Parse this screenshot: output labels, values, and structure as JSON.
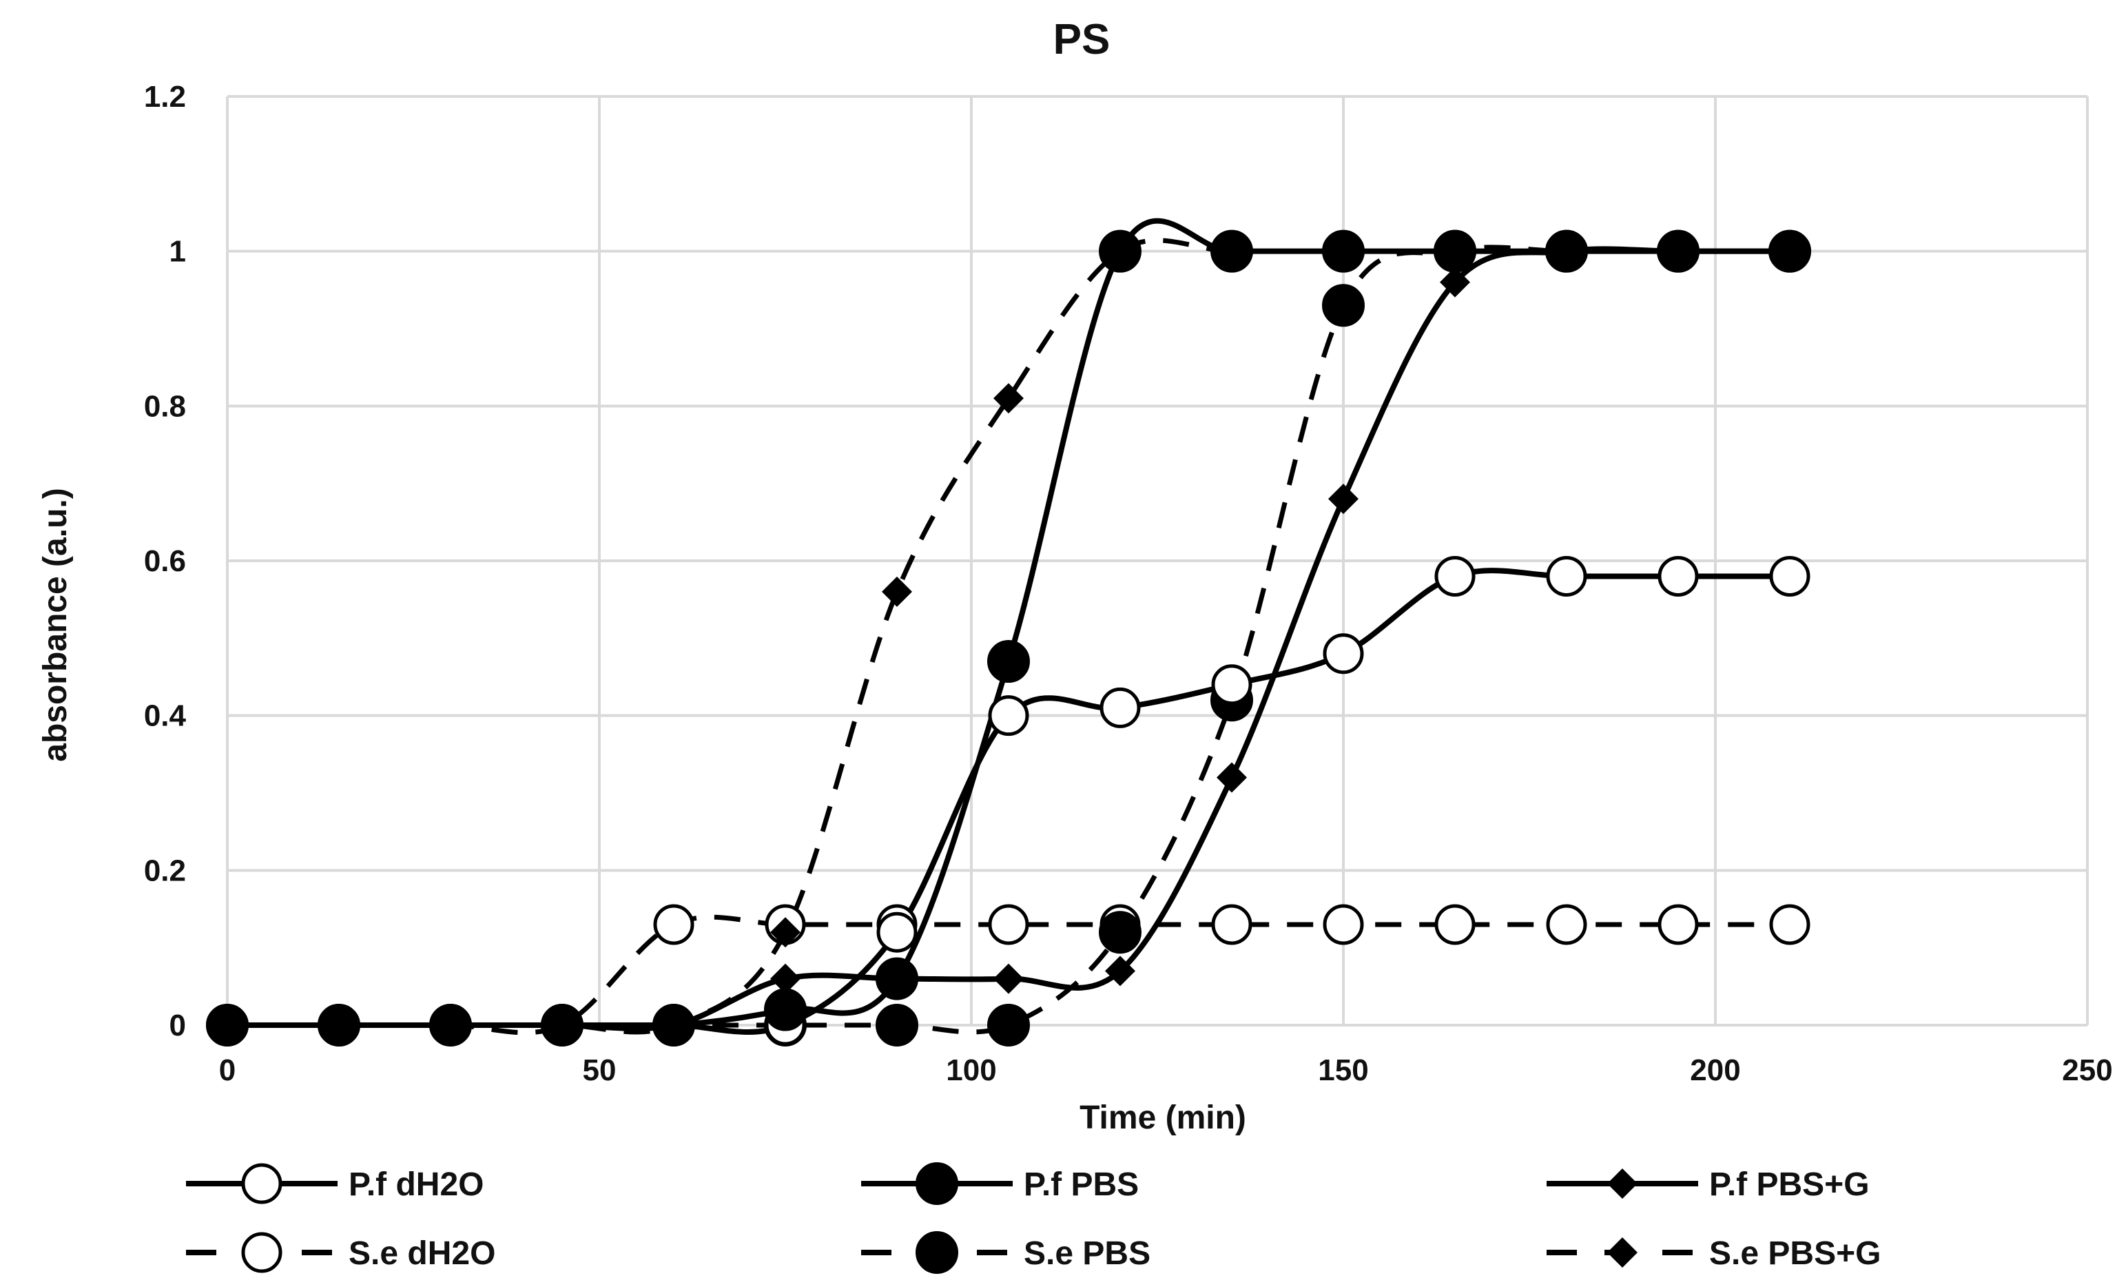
{
  "chart_data": {
    "type": "line",
    "title": "PS",
    "xlabel": "Time (min)",
    "ylabel": "absorbance (a.u.)",
    "xlim": [
      0,
      250
    ],
    "ylim": [
      0,
      1.2
    ],
    "x_ticks": [
      0,
      50,
      100,
      150,
      200,
      250
    ],
    "y_ticks": [
      0,
      0.2,
      0.4,
      0.6,
      0.8,
      1,
      1.2
    ],
    "x_tick_labels": [
      "0",
      "50",
      "100",
      "150",
      "200",
      "250"
    ],
    "y_tick_labels": [
      "0",
      "0.2",
      "0.4",
      "0.6",
      "0.8",
      "1",
      "1.2"
    ],
    "grid": true,
    "legend_position": "bottom",
    "series": [
      {
        "name": "P.f dH2O",
        "line": "solid",
        "marker": "circle-open",
        "x": [
          0,
          15,
          30,
          45,
          60,
          75,
          90,
          105,
          120,
          135,
          150,
          165,
          180,
          195,
          210
        ],
        "y": [
          0,
          0,
          0,
          0,
          0,
          0,
          0.12,
          0.4,
          0.41,
          0.44,
          0.48,
          0.58,
          0.58,
          0.58,
          0.58
        ]
      },
      {
        "name": "P.f PBS",
        "line": "solid",
        "marker": "circle-filled",
        "x": [
          0,
          15,
          30,
          45,
          60,
          75,
          90,
          105,
          120,
          135,
          150,
          165,
          180,
          195,
          210
        ],
        "y": [
          0,
          0,
          0,
          0,
          0,
          0.02,
          0.06,
          0.47,
          1,
          1,
          1,
          1,
          1,
          1,
          1
        ]
      },
      {
        "name": "P.f PBS+G",
        "line": "solid",
        "marker": "diamond-filled",
        "x": [
          0,
          15,
          30,
          45,
          60,
          75,
          90,
          105,
          120,
          135,
          150,
          165,
          180,
          195,
          210
        ],
        "y": [
          0,
          0,
          0,
          0,
          0,
          0.06,
          0.06,
          0.06,
          0.07,
          0.32,
          0.68,
          0.96,
          1,
          1,
          1
        ]
      },
      {
        "name": "S.e dH2O",
        "line": "dashed",
        "marker": "circle-open",
        "x": [
          0,
          15,
          30,
          45,
          60,
          75,
          90,
          105,
          120,
          135,
          150,
          165,
          180,
          195,
          210
        ],
        "y": [
          0,
          0,
          0,
          0,
          0.13,
          0.13,
          0.13,
          0.13,
          0.13,
          0.13,
          0.13,
          0.13,
          0.13,
          0.13,
          0.13
        ]
      },
      {
        "name": "S.e PBS",
        "line": "dashed",
        "marker": "circle-filled",
        "x": [
          0,
          15,
          30,
          45,
          60,
          75,
          90,
          105,
          120,
          135,
          150,
          165,
          180,
          195,
          210
        ],
        "y": [
          0,
          0,
          0,
          0,
          0,
          0,
          0,
          0,
          0.12,
          0.42,
          0.93,
          1,
          1,
          1,
          1
        ]
      },
      {
        "name": "S.e PBS+G",
        "line": "dashed",
        "marker": "diamond-filled",
        "x": [
          0,
          15,
          30,
          45,
          60,
          75,
          90,
          105,
          120,
          135,
          150,
          165,
          180,
          195,
          210
        ],
        "y": [
          0,
          0,
          0,
          0,
          0,
          0.12,
          0.56,
          0.81,
          1,
          1,
          1,
          1,
          1,
          1,
          1
        ]
      }
    ]
  }
}
